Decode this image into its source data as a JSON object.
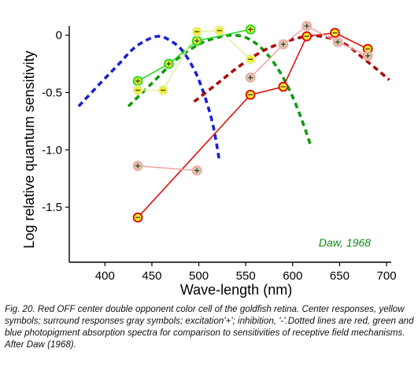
{
  "chart_data": {
    "type": "line",
    "xlabel": "Wave-length (nm)",
    "ylabel": "Log relative quantum sensitivity",
    "xlim": [
      362,
      705
    ],
    "ylim": [
      -1.98,
      0.08
    ],
    "xticks": [
      400,
      450,
      500,
      550,
      600,
      650,
      700
    ],
    "yticks": [
      0,
      -0.5,
      -1.0,
      -1.5
    ],
    "ytick_labels": [
      "0",
      "-0.5",
      "-1.0",
      "-1.5"
    ],
    "annotation": {
      "text": "Daw, 1968",
      "color": "#0e8a14"
    },
    "colors": {
      "blue_dash": "#1a1fd0",
      "green_dash": "#109a10",
      "red_dash": "#aa0a0a",
      "red_line": "#e01010",
      "pink_line": "#f2a6a6",
      "green_line": "#22dd22",
      "paleyellow_line": "#e4efa6",
      "yellow_fill": "#f6f020",
      "gray_fill": "#d2d2a6"
    },
    "series": [
      {
        "kind": "dashed",
        "color_key": "blue_dash",
        "x": [
          372,
          395,
          415,
          430,
          445,
          458,
          470,
          482,
          495,
          505,
          515,
          522
        ],
        "y": [
          -0.62,
          -0.42,
          -0.25,
          -0.12,
          -0.04,
          -0.01,
          -0.05,
          -0.13,
          -0.3,
          -0.5,
          -0.78,
          -1.1
        ]
      },
      {
        "kind": "dashed",
        "color_key": "green_dash",
        "x": [
          425,
          450,
          475,
          500,
          520,
          535,
          550,
          565,
          580,
          595,
          608,
          620
        ],
        "y": [
          -0.62,
          -0.42,
          -0.22,
          -0.08,
          -0.02,
          0.0,
          -0.02,
          -0.1,
          -0.24,
          -0.45,
          -0.7,
          -0.98
        ]
      },
      {
        "kind": "dashed",
        "color_key": "red_dash",
        "x": [
          495,
          520,
          545,
          570,
          595,
          615,
          630,
          645,
          660,
          675,
          690,
          703
        ],
        "y": [
          -0.58,
          -0.42,
          -0.26,
          -0.13,
          -0.05,
          -0.01,
          -0.01,
          -0.04,
          -0.1,
          -0.2,
          -0.3,
          -0.39
        ]
      },
      {
        "kind": "markers",
        "line_color_key": "green_line",
        "fill_key": "yellow_fill",
        "symbol": "+",
        "x": [
          435,
          468,
          498,
          555
        ],
        "y": [
          -0.4,
          -0.25,
          -0.05,
          0.05
        ]
      },
      {
        "kind": "markers",
        "line_color_key": "paleyellow_line",
        "fill_key": "yellow_fill",
        "symbol": "-",
        "x": [
          435,
          462,
          498,
          522,
          555
        ],
        "y": [
          -0.48,
          -0.48,
          0.03,
          0.04,
          -0.21
        ]
      },
      {
        "kind": "markers",
        "line_color_key": "red_line",
        "fill_key": "yellow_fill",
        "symbol": "-",
        "x": [
          435,
          555,
          590,
          615,
          645,
          680
        ],
        "y": [
          -1.59,
          -0.52,
          -0.45,
          -0.01,
          0.02,
          -0.12
        ]
      },
      {
        "kind": "markers",
        "line_color_key": "pink_line",
        "fill_key": "gray_fill",
        "symbol": "+",
        "x": [
          435,
          498
        ],
        "y": [
          -1.14,
          -1.18
        ]
      },
      {
        "kind": "markers",
        "line_color_key": "pink_line",
        "fill_key": "gray_fill",
        "symbol": "+",
        "x": [
          555,
          590,
          615,
          648,
          680
        ],
        "y": [
          -0.37,
          -0.08,
          0.08,
          -0.06,
          -0.18
        ]
      }
    ]
  },
  "caption": "Fig. 20. Red OFF center double opponent color cell of the goldfish retina. Center responses, yellow symbols; surround responses gray symbols; excitation'+'; inhibition, '-'.Dotted lines are red, green and blue photopigment absorption spectra for comparison to sensitivities of receptive field mechanisms. After Daw (1968)."
}
